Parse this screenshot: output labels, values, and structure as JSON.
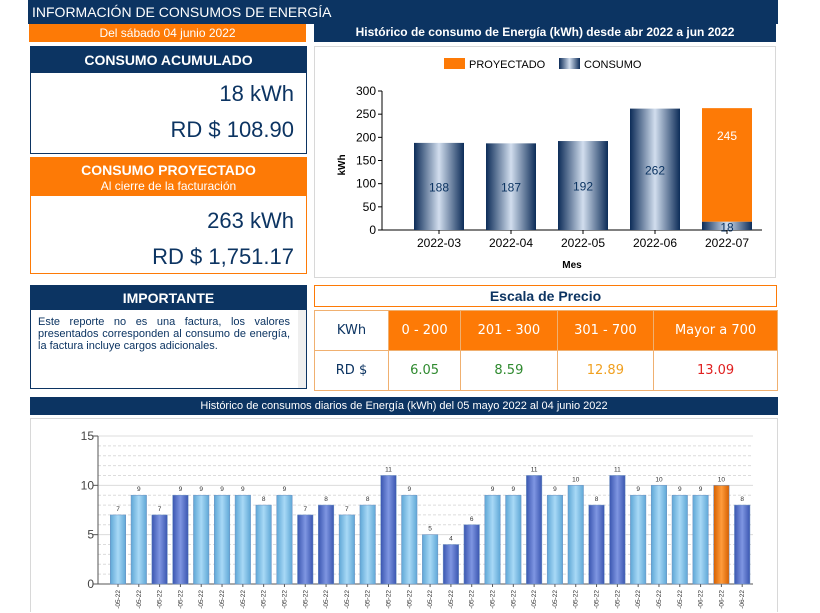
{
  "header": {
    "title": "INFORMACIÓN DE CONSUMOS DE ENERGÍA",
    "date": "Del sábado 04 junio 2022"
  },
  "accumulated": {
    "title": "CONSUMO ACUMULADO",
    "kwh": "18 kWh",
    "amount": "RD $ 108.90"
  },
  "projected": {
    "title": "CONSUMO PROYECTADO",
    "subtitle": "Al cierre de la facturación",
    "kwh": "263 kWh",
    "amount": "RD $ 1,751.17"
  },
  "important": {
    "title": "IMPORTANTE",
    "text": "Este reporte no es una factura, los valores presentados corresponden al consumo de energía, la factura incluye cargos adicionales."
  },
  "price_scale": {
    "title": "Escala de Precio",
    "row_kwh_label": "KWh",
    "row_rd_label": "RD $",
    "ranges": [
      "0 - 200",
      "201 - 300",
      "301 - 700",
      "Mayor a 700"
    ],
    "prices": [
      "6.05",
      "8.59",
      "12.89",
      "13.09"
    ],
    "price_colors": [
      "#2f8a2f",
      "#2f8a2f",
      "#f0a020",
      "#e02020"
    ]
  },
  "colors": {
    "navy": "#0c3462",
    "orange": "#fd7a06",
    "bar_light": "#7fc3ea",
    "bar_dark": "#5570c8"
  },
  "chart_data": [
    {
      "type": "bar",
      "title": "Histórico de consumo de Energía (kWh) desde abr 2022 a jun 2022",
      "xlabel": "Mes",
      "ylabel": "kWh",
      "ylim": [
        0,
        300
      ],
      "yticks": [
        0,
        50,
        100,
        150,
        200,
        250,
        300
      ],
      "categories": [
        "2022-03",
        "2022-04",
        "2022-05",
        "2022-06",
        "2022-07"
      ],
      "series": [
        {
          "name": "CONSUMO",
          "values": [
            188,
            187,
            192,
            262,
            18
          ]
        },
        {
          "name": "PROYECTADO",
          "values": [
            0,
            0,
            0,
            0,
            245
          ]
        }
      ],
      "data_labels": [
        "188",
        "187",
        "192",
        "262",
        "18",
        "245"
      ],
      "legend": "top-center",
      "stacked": true
    },
    {
      "type": "bar",
      "title": "Histórico de consumos diarios de Energía (kWh) del 05 mayo 2022 al 04 junio 2022",
      "ylim": [
        0,
        15
      ],
      "yticks": [
        0,
        5,
        10,
        15
      ],
      "categories": [
        "-05-22",
        "-05-22",
        "-05-22",
        "-05-22",
        "-05-22",
        "-05-22",
        "-05-22",
        "-05-22",
        "-05-22",
        "-05-22",
        "-05-22",
        "-05-22",
        "-05-22",
        "-05-22",
        "-05-22",
        "-05-22",
        "-05-22",
        "-05-22",
        "-05-22",
        "-05-22",
        "-05-22",
        "-05-22",
        "-05-22",
        "-05-22",
        "-05-22",
        "-05-22",
        "-05-22",
        "-05-22",
        "-06-22",
        "-06-22",
        "-06-22"
      ],
      "values": [
        7,
        9,
        7,
        9,
        9,
        9,
        9,
        8,
        9,
        7,
        8,
        7,
        8,
        11,
        9,
        5,
        4,
        6,
        9,
        9,
        11,
        9,
        10,
        8,
        11,
        9,
        10,
        9,
        9,
        10,
        8
      ],
      "bar_styles": [
        "light",
        "light",
        "dark",
        "dark",
        "light",
        "light",
        "light",
        "light",
        "light",
        "dark",
        "dark",
        "light",
        "light",
        "dark",
        "light",
        "light",
        "dark",
        "dark",
        "light",
        "light",
        "dark",
        "light",
        "light",
        "dark",
        "dark",
        "light",
        "light",
        "light",
        "light",
        "orange",
        "dark"
      ]
    }
  ]
}
